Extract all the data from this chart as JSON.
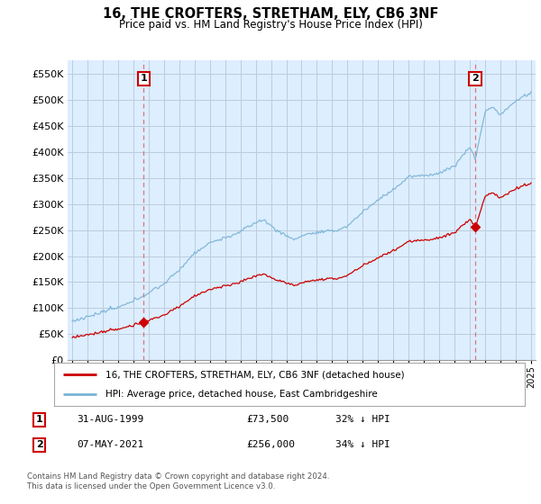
{
  "title": "16, THE CROFTERS, STRETHAM, ELY, CB6 3NF",
  "subtitle": "Price paid vs. HM Land Registry's House Price Index (HPI)",
  "ylim": [
    0,
    575000
  ],
  "yticks": [
    0,
    50000,
    100000,
    150000,
    200000,
    250000,
    300000,
    350000,
    400000,
    450000,
    500000,
    550000
  ],
  "sale1_year": 1999.67,
  "sale1_price": 73500,
  "sale1_label": "1",
  "sale2_year": 2021.35,
  "sale2_price": 256000,
  "sale2_label": "2",
  "legend_line1": "16, THE CROFTERS, STRETHAM, ELY, CB6 3NF (detached house)",
  "legend_line2": "HPI: Average price, detached house, East Cambridgeshire",
  "table_row1": [
    "1",
    "31-AUG-1999",
    "£73,500",
    "32% ↓ HPI"
  ],
  "table_row2": [
    "2",
    "07-MAY-2021",
    "£256,000",
    "34% ↓ HPI"
  ],
  "footer1": "Contains HM Land Registry data © Crown copyright and database right 2024.",
  "footer2": "This data is licensed under the Open Government Licence v3.0.",
  "hpi_color": "#7ab3d4",
  "price_color": "#cc0000",
  "dashed_color": "#e06060",
  "plot_bg_color": "#ddeeff",
  "fig_bg_color": "#ffffff",
  "grid_color": "#bbccdd"
}
